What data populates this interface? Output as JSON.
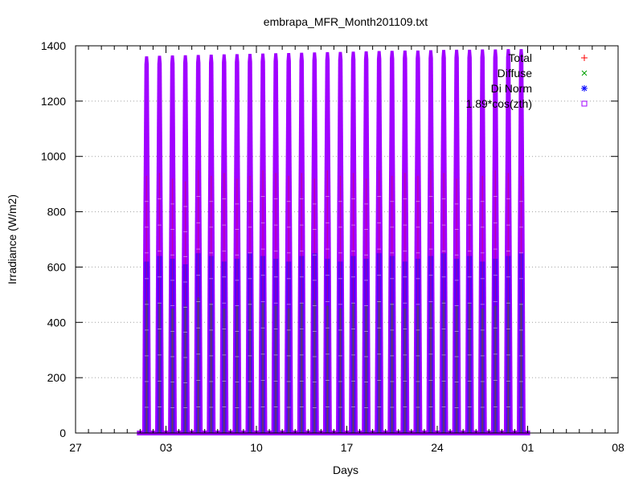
{
  "chart_data": {
    "type": "scatter",
    "title": "embrapa_MFR_Month201109.txt",
    "xlabel": "Days",
    "ylabel": "Irradiance (W/m2)",
    "xlim": [
      "2011-08-27",
      "2011-10-08"
    ],
    "ylim": [
      0,
      1400
    ],
    "x_ticks": [
      "27",
      "03",
      "10",
      "17",
      "24",
      "01",
      "08"
    ],
    "y_ticks": [
      "0",
      "200",
      "400",
      "600",
      "800",
      "1000",
      "1200",
      "1400"
    ],
    "grid": true,
    "legend_position": "top-right",
    "days": [
      "2011-09-01",
      "2011-09-02",
      "2011-09-03",
      "2011-09-04",
      "2011-09-05",
      "2011-09-06",
      "2011-09-07",
      "2011-09-08",
      "2011-09-09",
      "2011-09-10",
      "2011-09-11",
      "2011-09-12",
      "2011-09-13",
      "2011-09-14",
      "2011-09-15",
      "2011-09-16",
      "2011-09-17",
      "2011-09-18",
      "2011-09-19",
      "2011-09-20",
      "2011-09-21",
      "2011-09-22",
      "2011-09-23",
      "2011-09-24",
      "2011-09-25",
      "2011-09-26",
      "2011-09-27",
      "2011-09-28",
      "2011-09-29",
      "2011-09-30"
    ],
    "series": [
      {
        "name": "Total",
        "marker": "plus",
        "color": "#ff0000",
        "daily_max": [
          930,
          940,
          920,
          910,
          950,
          930,
          940,
          920,
          930,
          950,
          940,
          930,
          940,
          920,
          950,
          930,
          940,
          920,
          950,
          930,
          940,
          930,
          950,
          940,
          920,
          940,
          930,
          950,
          940,
          930
        ]
      },
      {
        "name": "Diffuse",
        "marker": "cross",
        "color": "#00a000",
        "daily_max": [
          480,
          470,
          450,
          460,
          490,
          470,
          450,
          460,
          480,
          470,
          460,
          450,
          470,
          480,
          460,
          450,
          470,
          460,
          480,
          470,
          450,
          460,
          470,
          480,
          460,
          470,
          450,
          460,
          480,
          470
        ]
      },
      {
        "name": "Di Norm",
        "marker": "star",
        "color": "#0000ff",
        "daily_max": [
          620,
          640,
          630,
          610,
          650,
          640,
          620,
          630,
          650,
          640,
          630,
          620,
          640,
          650,
          630,
          620,
          640,
          630,
          650,
          640,
          620,
          630,
          640,
          650,
          630,
          640,
          620,
          630,
          640,
          650
        ]
      },
      {
        "name": "1.89*cos(zth)",
        "marker": "box",
        "color": "#a000ff",
        "daily_max": [
          1362,
          1364,
          1365,
          1366,
          1367,
          1368,
          1369,
          1370,
          1371,
          1372,
          1373,
          1374,
          1375,
          1376,
          1377,
          1378,
          1379,
          1380,
          1381,
          1382,
          1383,
          1383,
          1384,
          1385,
          1386,
          1386,
          1387,
          1387,
          1388,
          1388
        ]
      }
    ]
  }
}
